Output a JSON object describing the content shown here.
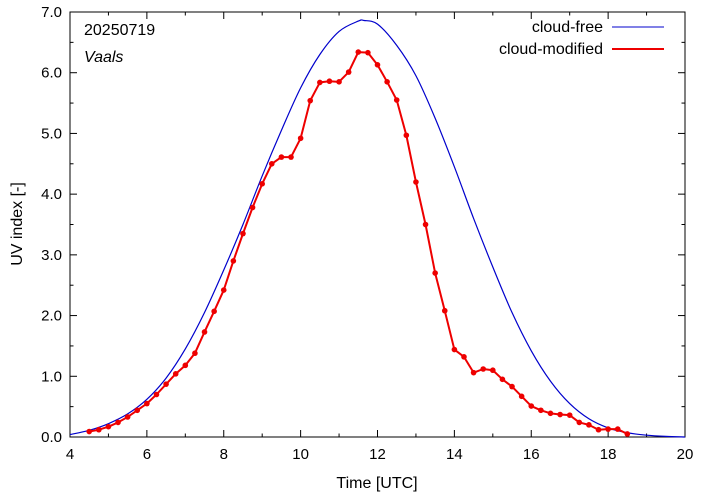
{
  "chart_data": {
    "type": "line",
    "title": "",
    "xlabel": "Time  [UTC]",
    "ylabel": "UV index  [-]",
    "xlim": [
      4,
      20
    ],
    "ylim": [
      0,
      7
    ],
    "xticks": [
      4,
      6,
      8,
      10,
      12,
      14,
      16,
      18,
      20
    ],
    "yticks": [
      0,
      1,
      2,
      3,
      4,
      5,
      6,
      7
    ],
    "ytick_labels": [
      "0.0",
      "1.0",
      "2.0",
      "3.0",
      "4.0",
      "5.0",
      "6.0",
      "7.0"
    ],
    "grid": false,
    "legend_position": "top-right",
    "annotations": [
      "20250719",
      "Vaals"
    ],
    "series": [
      {
        "name": "cloud-free",
        "color": "#0000cc",
        "style": "line",
        "peak_x": 11.65,
        "peak_y": 6.86,
        "x": [
          4.0,
          4.5,
          5.0,
          5.5,
          6.0,
          6.5,
          7.0,
          7.5,
          8.0,
          8.5,
          9.0,
          9.5,
          10.0,
          10.5,
          11.0,
          11.5,
          11.65,
          12.0,
          12.5,
          13.0,
          13.5,
          14.0,
          14.5,
          15.0,
          15.5,
          16.0,
          16.5,
          17.0,
          17.5,
          18.0,
          18.5,
          19.0,
          19.5,
          20.0
        ],
        "y": [
          0.04,
          0.11,
          0.22,
          0.38,
          0.62,
          0.97,
          1.45,
          2.05,
          2.75,
          3.5,
          4.3,
          5.05,
          5.75,
          6.3,
          6.68,
          6.85,
          6.86,
          6.8,
          6.45,
          5.95,
          5.25,
          4.45,
          3.6,
          2.8,
          2.05,
          1.42,
          0.92,
          0.55,
          0.3,
          0.15,
          0.07,
          0.03,
          0.01,
          0.0
        ]
      },
      {
        "name": "cloud-modified",
        "color": "#ee0000",
        "style": "line+points",
        "x": [
          4.5,
          4.75,
          5.0,
          5.25,
          5.5,
          5.75,
          6.0,
          6.25,
          6.5,
          6.75,
          7.0,
          7.25,
          7.5,
          7.75,
          8.0,
          8.25,
          8.5,
          8.75,
          9.0,
          9.25,
          9.5,
          9.75,
          10.0,
          10.25,
          10.5,
          10.75,
          11.0,
          11.25,
          11.5,
          11.75,
          12.0,
          12.25,
          12.5,
          12.75,
          13.0,
          13.25,
          13.5,
          13.75,
          14.0,
          14.25,
          14.5,
          14.75,
          15.0,
          15.25,
          15.5,
          15.75,
          16.0,
          16.25,
          16.5,
          16.75,
          17.0,
          17.25,
          17.5,
          17.75,
          18.0,
          18.25,
          18.5
        ],
        "y": [
          0.09,
          0.12,
          0.17,
          0.24,
          0.33,
          0.44,
          0.55,
          0.7,
          0.87,
          1.04,
          1.18,
          1.38,
          1.73,
          2.07,
          2.42,
          2.9,
          3.35,
          3.78,
          4.17,
          4.5,
          4.61,
          4.61,
          4.92,
          5.54,
          5.84,
          5.86,
          5.85,
          6.01,
          6.34,
          6.33,
          6.13,
          5.85,
          5.55,
          4.97,
          4.2,
          3.5,
          2.7,
          2.08,
          1.44,
          1.32,
          1.06,
          1.12,
          1.1,
          0.95,
          0.83,
          0.67,
          0.51,
          0.44,
          0.39,
          0.37,
          0.36,
          0.24,
          0.2,
          0.12,
          0.13,
          0.13,
          0.05
        ]
      }
    ]
  }
}
